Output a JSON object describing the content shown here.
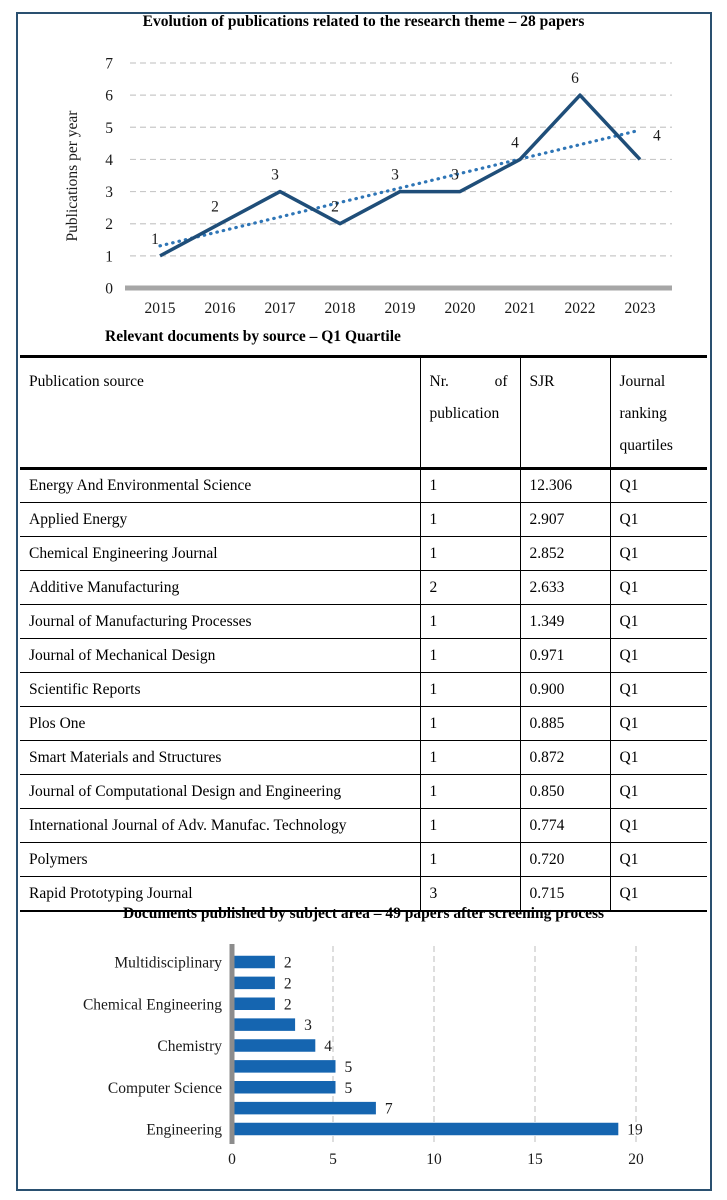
{
  "figure": {
    "frame_color": "#2A5070",
    "text_color": "#000000"
  },
  "chart_data": [
    {
      "type": "line",
      "title": "Evolution of publications related to the research theme – 28 papers",
      "ylabel": "Publications per year",
      "xlabel": "",
      "categories": [
        "2015",
        "2016",
        "2017",
        "2018",
        "2019",
        "2020",
        "2021",
        "2022",
        "2023"
      ],
      "series": [
        {
          "name": "Publications per year",
          "values": [
            1,
            2,
            3,
            2,
            3,
            3,
            4,
            6,
            4
          ],
          "color": "#1F4E79",
          "style": "solid"
        }
      ],
      "trendline": {
        "type": "linear",
        "style": "dotted",
        "color": "#2E75B6"
      },
      "data_labels": [
        1,
        2,
        3,
        2,
        3,
        3,
        4,
        6,
        4
      ],
      "ylim": [
        0,
        7
      ],
      "yticks": [
        0,
        1,
        2,
        3,
        4,
        5,
        6,
        7
      ],
      "grid": "horizontal-dashed",
      "grid_color": "#C9C9C9",
      "axis_color": "#A6A6A6",
      "legend": "none"
    },
    {
      "type": "table",
      "title": "Relevant documents by source – Q1 Quartile",
      "columns": [
        "Publication source",
        "Nr. of publication",
        "SJR",
        "Journal ranking quartiles"
      ],
      "rows": [
        [
          "Energy And Environmental Science",
          "1",
          "12.306",
          "Q1"
        ],
        [
          "Applied Energy",
          "1",
          "2.907",
          "Q1"
        ],
        [
          "Chemical Engineering Journal",
          "1",
          "2.852",
          "Q1"
        ],
        [
          "Additive Manufacturing",
          "2",
          "2.633",
          "Q1"
        ],
        [
          "Journal of Manufacturing Processes",
          "1",
          "1.349",
          "Q1"
        ],
        [
          "Journal of Mechanical Design",
          "1",
          "0.971",
          "Q1"
        ],
        [
          "Scientific Reports",
          "1",
          "0.900",
          "Q1"
        ],
        [
          "Plos One",
          "1",
          "0.885",
          "Q1"
        ],
        [
          "Smart Materials and Structures",
          "1",
          "0.872",
          "Q1"
        ],
        [
          "Journal of Computational Design and Engineering",
          "1",
          "0.850",
          "Q1"
        ],
        [
          "International Journal of Adv. Manufac. Technology",
          "1",
          "0.774",
          "Q1"
        ],
        [
          "Polymers",
          "1",
          "0.720",
          "Q1"
        ],
        [
          "Rapid Prototyping Journal",
          "3",
          "0.715",
          "Q1"
        ]
      ]
    },
    {
      "type": "bar",
      "orientation": "horizontal",
      "title": "Documents published by subject area – 49 papers after screening process",
      "categories": [
        "Multidisciplinary",
        "",
        "Chemical Engineering",
        "",
        "Chemistry",
        "",
        "Computer Science",
        "",
        "Engineering"
      ],
      "values": [
        2,
        2,
        2,
        3,
        4,
        5,
        5,
        7,
        19
      ],
      "data_labels": [
        2,
        2,
        2,
        3,
        4,
        5,
        5,
        7,
        19
      ],
      "xlim": [
        0,
        20
      ],
      "xticks": [
        0,
        5,
        10,
        15,
        20
      ],
      "grid": "vertical-dashed",
      "grid_color": "#C9C9C9",
      "axis_color": "#8C8C8C",
      "bar_color": "#1565B0",
      "legend": "none"
    }
  ]
}
